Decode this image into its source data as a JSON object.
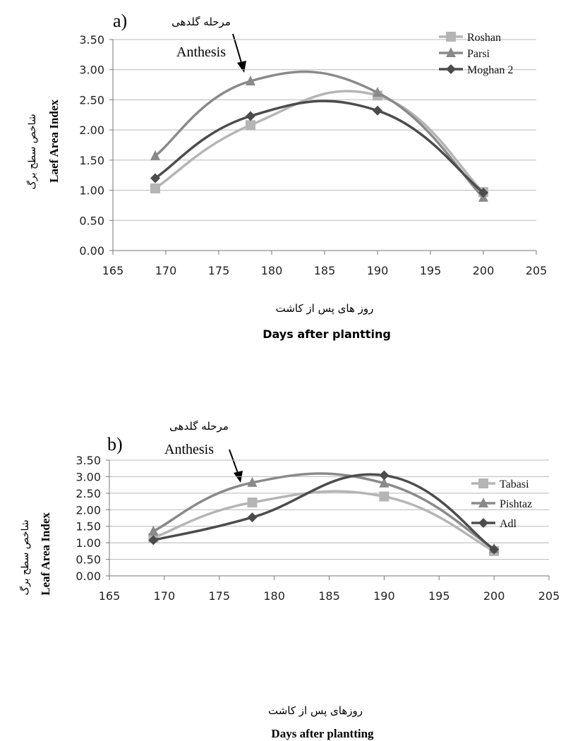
{
  "chart_data": [
    {
      "type": "line",
      "panel_label": "a)",
      "stage_label_fa": "مرحله گلدهی",
      "stage_label_en": "Anthesis",
      "xlabel_fa": "روز های پس از کاشت",
      "xlabel_en": "Days after plantting",
      "ylabel_fa": "شاخص سطح برگ",
      "ylabel_en": "Laef  Area Index",
      "xlim": [
        165,
        205
      ],
      "ylim": [
        0,
        3.5
      ],
      "x_ticks": [
        "165",
        "170",
        "175",
        "180",
        "185",
        "190",
        "195",
        "200",
        "205"
      ],
      "y_ticks": [
        "0.00",
        "0.50",
        "1.00",
        "1.50",
        "2.00",
        "2.50",
        "3.00",
        "3.50"
      ],
      "anthesis_x": 178,
      "legend": "top-right",
      "x": [
        169,
        178,
        190,
        200
      ],
      "series": [
        {
          "name": "Roshan",
          "values": [
            1.03,
            2.08,
            2.57,
            0.97
          ],
          "color": "#b5b5b5",
          "marker": "square"
        },
        {
          "name": "Parsi",
          "values": [
            1.57,
            2.81,
            2.62,
            0.88
          ],
          "color": "#8a8a8a",
          "marker": "triangle"
        },
        {
          "name": "Moghan 2",
          "values": [
            1.2,
            2.23,
            2.32,
            0.96
          ],
          "color": "#4c4c4c",
          "marker": "diamond"
        }
      ]
    },
    {
      "type": "line",
      "panel_label": "b)",
      "stage_label_fa": "مرحله گلدهی",
      "stage_label_en": "Anthesis",
      "xlabel_fa": "روزهای پس از کاشت",
      "xlabel_en": "Days after plantting",
      "ylabel_fa": "شاخص سطح برگ",
      "ylabel_en": "Leaf  Area Index",
      "xlim": [
        165,
        205
      ],
      "ylim": [
        0,
        3.5
      ],
      "x_ticks": [
        "165",
        "170",
        "175",
        "180",
        "185",
        "190",
        "195",
        "200",
        "205"
      ],
      "y_ticks": [
        "0.00",
        "0.50",
        "1.00",
        "1.50",
        "2.00",
        "2.50",
        "3.00",
        "3.50"
      ],
      "anthesis_x": 178,
      "legend": "top-right",
      "x": [
        169,
        178,
        190,
        200
      ],
      "series": [
        {
          "name": "Tabasi",
          "values": [
            1.15,
            2.22,
            2.4,
            0.75
          ],
          "color": "#b5b5b5",
          "marker": "square"
        },
        {
          "name": "Pishtaz",
          "values": [
            1.35,
            2.82,
            2.8,
            0.82
          ],
          "color": "#8a8a8a",
          "marker": "triangle"
        },
        {
          "name": "Adl",
          "values": [
            1.08,
            1.77,
            3.04,
            0.8
          ],
          "color": "#4c4c4c",
          "marker": "diamond"
        }
      ]
    }
  ]
}
